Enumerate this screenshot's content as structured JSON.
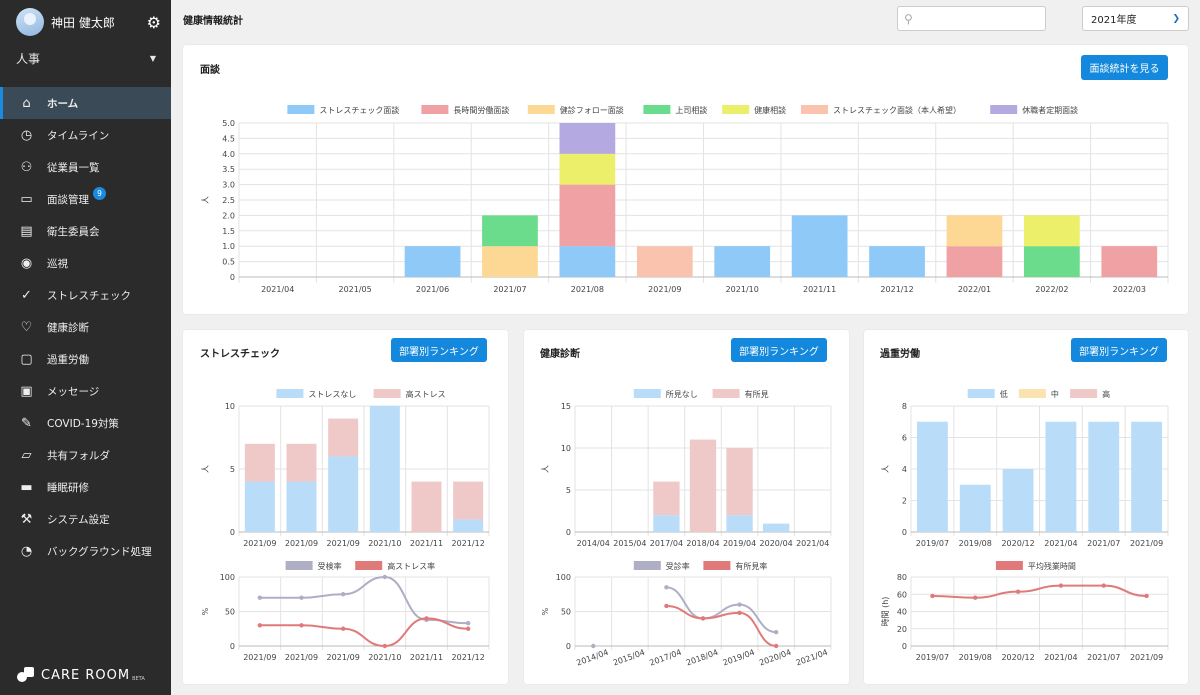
{
  "user": {
    "name": "神田 健太郎"
  },
  "department": "人事",
  "nav": [
    {
      "label": "ホーム",
      "icon": "home-icon",
      "active": true
    },
    {
      "label": "タイムライン",
      "icon": "clock-icon"
    },
    {
      "label": "従業員一覧",
      "icon": "users-icon"
    },
    {
      "label": "面談管理",
      "icon": "chat-icon",
      "badge": "9"
    },
    {
      "label": "衛生委員会",
      "icon": "clipboard-icon"
    },
    {
      "label": "巡視",
      "icon": "eye-icon"
    },
    {
      "label": "ストレスチェック",
      "icon": "check-icon"
    },
    {
      "label": "健康診断",
      "icon": "heart-icon"
    },
    {
      "label": "過重労働",
      "icon": "briefcase-icon"
    },
    {
      "label": "メッセージ",
      "icon": "message-icon"
    },
    {
      "label": "COVID-19対策",
      "icon": "syringe-icon"
    },
    {
      "label": "共有フォルダ",
      "icon": "folder-icon"
    },
    {
      "label": "睡眠研修",
      "icon": "bed-icon"
    },
    {
      "label": "システム設定",
      "icon": "wrench-icon"
    },
    {
      "label": "バックグラウンド処理",
      "icon": "timer-icon"
    }
  ],
  "brand": {
    "name": "CARE ROOM",
    "tag": "BETA"
  },
  "header": {
    "title": "健康情報統計",
    "search_placeholder": "",
    "year": "2021年度"
  },
  "colors": {
    "blue": "#8ec9f8",
    "red": "#f0a1a3",
    "orange": "#fdd894",
    "green": "#6bdc8b",
    "yellow": "#ecef6a",
    "peach": "#f9c3ad",
    "purple": "#b4a9e0",
    "lblue": "#b9dcf8",
    "lred": "#efc8c8",
    "lorange": "#fbe2b1",
    "gray": "#aeaec4",
    "red_line": "#e07a7a",
    "accent": "#1488dc"
  },
  "interview": {
    "title": "面談",
    "button": "面談統計を見る",
    "chart_data": {
      "type": "bar",
      "stacked": true,
      "categories": [
        "2021/04",
        "2021/05",
        "2021/06",
        "2021/07",
        "2021/08",
        "2021/09",
        "2021/10",
        "2021/11",
        "2021/12",
        "2022/01",
        "2022/02",
        "2022/03"
      ],
      "ylabel": "人",
      "ylim": [
        0,
        5.0
      ],
      "yticks": [
        "5.0",
        "4.5",
        "4.0",
        "3.5",
        "3.0",
        "2.5",
        "2.0",
        "1.5",
        "1.0",
        "0.5",
        "0"
      ],
      "series": [
        {
          "name": "ストレスチェック面談",
          "color": "blue",
          "values": [
            0,
            0,
            1,
            0,
            1,
            0,
            1,
            2,
            1,
            0,
            0,
            0
          ]
        },
        {
          "name": "長時間労働面談",
          "color": "red",
          "values": [
            0,
            0,
            0,
            0,
            2,
            0,
            0,
            0,
            0,
            1,
            0,
            1
          ]
        },
        {
          "name": "健診フォロー面談",
          "color": "orange",
          "values": [
            0,
            0,
            0,
            1,
            0,
            0,
            0,
            0,
            0,
            1,
            0,
            0
          ]
        },
        {
          "name": "上司相談",
          "color": "green",
          "values": [
            0,
            0,
            0,
            1,
            0,
            0,
            0,
            0,
            0,
            0,
            1,
            0
          ]
        },
        {
          "name": "健康相談",
          "color": "yellow",
          "values": [
            0,
            0,
            0,
            0,
            1,
            0,
            0,
            0,
            0,
            0,
            1,
            0
          ]
        },
        {
          "name": "ストレスチェック面談（本人希望）",
          "color": "peach",
          "values": [
            0,
            0,
            0,
            0,
            0,
            1,
            0,
            0,
            0,
            0,
            0,
            0
          ]
        },
        {
          "name": "休職者定期面談",
          "color": "purple",
          "values": [
            0,
            0,
            0,
            0,
            1,
            0,
            0,
            0,
            0,
            0,
            0,
            0
          ]
        }
      ]
    }
  },
  "stress": {
    "title": "ストレスチェック",
    "button": "部署別ランキング",
    "chart_data": {
      "type": "bar",
      "stacked": true,
      "categories": [
        "2021/09",
        "2021/09",
        "2021/09",
        "2021/10",
        "2021/11",
        "2021/12"
      ],
      "ylabel": "人",
      "ylim": [
        0,
        10
      ],
      "yticks": [
        "10",
        "5",
        "0"
      ],
      "series": [
        {
          "name": "ストレスなし",
          "color": "lblue",
          "values": [
            4,
            4,
            6,
            10,
            0,
            1
          ]
        },
        {
          "name": "高ストレス",
          "color": "lred",
          "values": [
            3,
            3,
            3,
            0,
            4,
            3
          ]
        }
      ]
    },
    "line_data": {
      "type": "line",
      "categories": [
        "2021/09",
        "2021/09",
        "2021/09",
        "2021/10",
        "2021/11",
        "2021/12"
      ],
      "ylabel": "%",
      "ylim": [
        0,
        100
      ],
      "yticks": [
        "100",
        "50",
        "0"
      ],
      "series": [
        {
          "name": "受検率",
          "color": "gray",
          "values": [
            70,
            70,
            75,
            100,
            38,
            33
          ]
        },
        {
          "name": "高ストレス率",
          "color": "red_line",
          "values": [
            30,
            30,
            25,
            0,
            40,
            25
          ]
        }
      ]
    }
  },
  "health": {
    "title": "健康診断",
    "button": "部署別ランキング",
    "chart_data": {
      "type": "bar",
      "stacked": true,
      "categories": [
        "2014/04",
        "2015/04",
        "2017/04",
        "2018/04",
        "2019/04",
        "2020/04",
        "2021/04"
      ],
      "ylabel": "人",
      "ylim": [
        0,
        15
      ],
      "yticks": [
        "15",
        "10",
        "5",
        "0"
      ],
      "series": [
        {
          "name": "所見なし",
          "color": "lblue",
          "values": [
            0,
            0,
            2,
            0,
            2,
            1,
            0
          ]
        },
        {
          "name": "有所見",
          "color": "lred",
          "values": [
            0,
            0,
            4,
            11,
            8,
            0,
            0
          ]
        }
      ]
    },
    "line_data": {
      "type": "line",
      "categories": [
        "2014/04",
        "2015/04",
        "2017/04",
        "2018/04",
        "2019/04",
        "2020/04",
        "2021/04"
      ],
      "ylabel": "%",
      "ylim": [
        0,
        100
      ],
      "yticks": [
        "100",
        "50",
        "0"
      ],
      "series": [
        {
          "name": "受診率",
          "color": "gray",
          "values": [
            0,
            null,
            85,
            40,
            60,
            20,
            null
          ]
        },
        {
          "name": "有所見率",
          "color": "red_line",
          "values": [
            null,
            null,
            58,
            40,
            48,
            0,
            null
          ]
        }
      ]
    }
  },
  "overwork": {
    "title": "過重労働",
    "button": "部署別ランキング",
    "chart_data": {
      "type": "bar",
      "stacked": true,
      "categories": [
        "2019/07",
        "2019/08",
        "2020/12",
        "2021/04",
        "2021/07",
        "2021/09"
      ],
      "ylabel": "人",
      "ylim": [
        0,
        8
      ],
      "yticks": [
        "8",
        "6",
        "4",
        "2",
        "0"
      ],
      "series": [
        {
          "name": "低",
          "color": "lblue",
          "values": [
            7,
            3,
            4,
            7,
            7,
            7
          ]
        },
        {
          "name": "中",
          "color": "lorange",
          "values": [
            0,
            0,
            0,
            0,
            0,
            0
          ]
        },
        {
          "name": "高",
          "color": "lred",
          "values": [
            0,
            0,
            0,
            0,
            0,
            0
          ]
        }
      ]
    },
    "line_data": {
      "type": "line",
      "categories": [
        "2019/07",
        "2019/08",
        "2020/12",
        "2021/04",
        "2021/07",
        "2021/09"
      ],
      "ylabel": "時間 (h)",
      "ylim": [
        0,
        80
      ],
      "yticks": [
        "80",
        "60",
        "40",
        "20",
        "0"
      ],
      "series": [
        {
          "name": "平均残業時間",
          "color": "red_line",
          "values": [
            58,
            56,
            63,
            70,
            70,
            58
          ]
        }
      ]
    }
  }
}
